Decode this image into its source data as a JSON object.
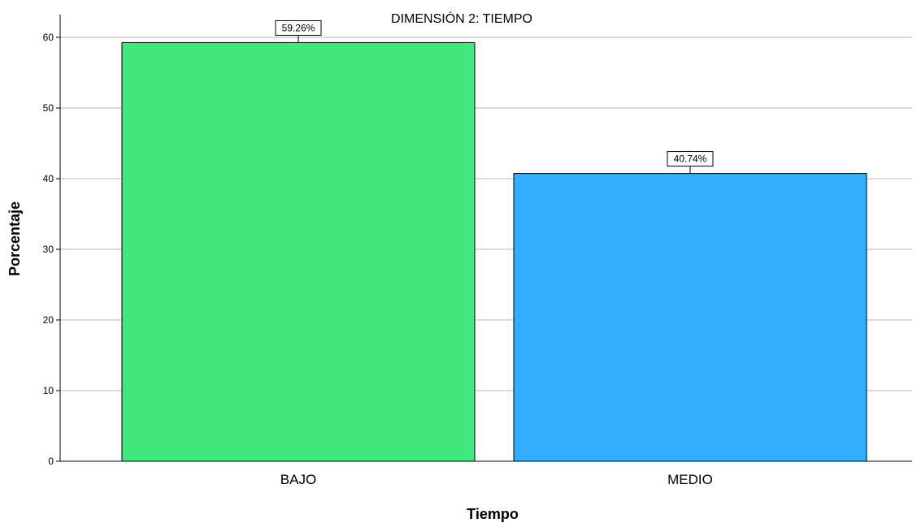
{
  "chart_data": {
    "type": "bar",
    "title": "DIMENSIÓN 2: TIEMPO",
    "xlabel": "Tiempo",
    "ylabel": "Porcentaje",
    "categories": [
      "BAJO",
      "MEDIO"
    ],
    "values": [
      59.26,
      40.74
    ],
    "data_labels": [
      "59.26%",
      "40.74%"
    ],
    "colors": [
      "#42e87e",
      "#33adff"
    ],
    "ylim": [
      0,
      60
    ],
    "yticks": [
      0,
      10,
      20,
      30,
      40,
      50,
      60
    ],
    "grid": true,
    "legend": "none"
  }
}
